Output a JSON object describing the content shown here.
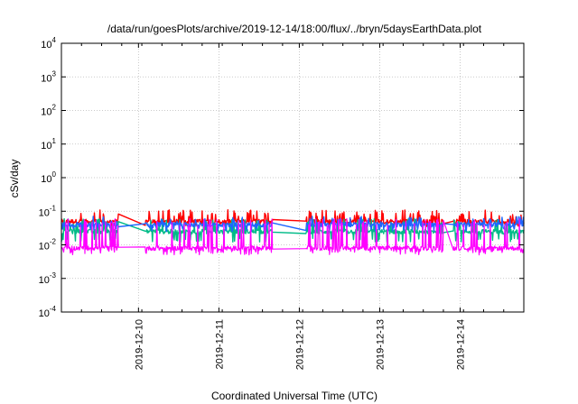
{
  "chart_data": {
    "type": "line",
    "title": "/data/run/goesPlots/archive/2019-12-14/18:00/flux/../bryn/5daysEarthData.plot",
    "xlabel": "Coordinated Universal Time (UTC)",
    "ylabel": "cSv/day",
    "x_axis": {
      "type": "time",
      "range": [
        "2019-12-09T01:00",
        "2019-12-14T19:00"
      ],
      "ticks": [
        "2019-12-10",
        "2019-12-11",
        "2019-12-12",
        "2019-12-13",
        "2019-12-14"
      ]
    },
    "y_axis": {
      "scale": "log",
      "range": [
        0.0001,
        10000
      ],
      "tick_labels": [
        {
          "base": "10",
          "exp": "4"
        },
        {
          "base": "10",
          "exp": "3"
        },
        {
          "base": "10",
          "exp": "2"
        },
        {
          "base": "10",
          "exp": "1"
        },
        {
          "base": "10",
          "exp": "0"
        },
        {
          "base": "10",
          "exp": "-1"
        },
        {
          "base": "10",
          "exp": "-2"
        },
        {
          "base": "10",
          "exp": "-3"
        },
        {
          "base": "10",
          "exp": "-4"
        }
      ]
    },
    "grid": true,
    "legend": "none",
    "data_gaps": [
      [
        "2019-12-09T18:00",
        "2019-12-10T02:00"
      ],
      [
        "2019-12-11T16:00",
        "2019-12-12T02:00"
      ],
      [
        "2019-12-13T19:00",
        "2019-12-13T22:00"
      ]
    ],
    "series": [
      {
        "color": "#ff0000",
        "typical": 0.05,
        "min": 0.035,
        "max": 0.11
      },
      {
        "color": "#00bb88",
        "typical": 0.025,
        "min": 0.012,
        "max": 0.06
      },
      {
        "color": "#1e66ff",
        "typical": 0.04,
        "min": 0.025,
        "max": 0.07
      },
      {
        "color": "#ff00ff",
        "typical": 0.008,
        "min": 0.005,
        "max": 0.06
      }
    ]
  }
}
